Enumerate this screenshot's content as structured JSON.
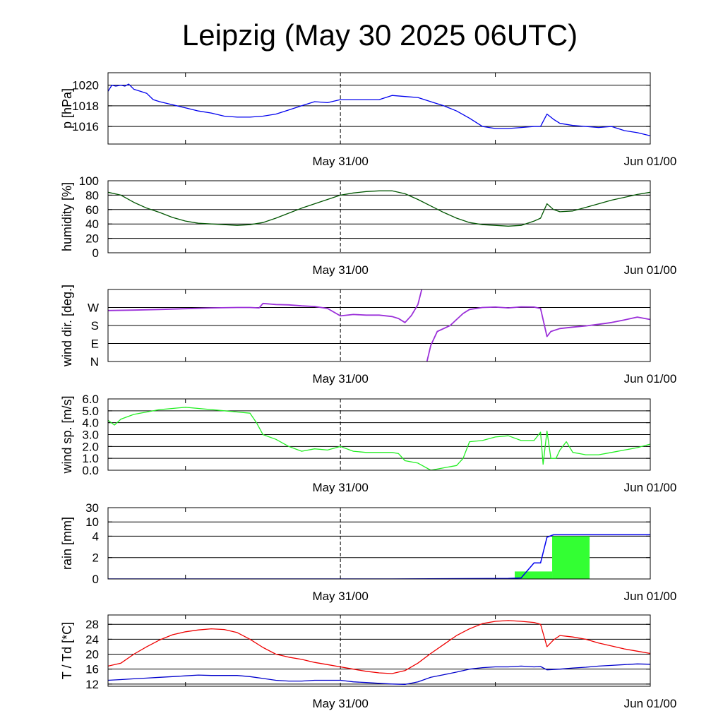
{
  "title": "Leipzig (May 30 2025 06UTC)",
  "colors": {
    "pressure": "#0000ee",
    "humidity": "#005500",
    "wind_dir": "#9b30d9",
    "wind_speed": "#22ee22",
    "rain_line": "#0000ee",
    "rain_bar": "#33ff33",
    "temperature": "#ee0000",
    "dewpoint": "#0000cc"
  },
  "chart_data": [
    {
      "type": "line",
      "id": "pressure",
      "ylabel": "p [hPa]",
      "ylim": [
        1014.3,
        1021.2
      ],
      "yticks": [
        1016,
        1018,
        1020
      ],
      "ytick_labels": [
        "1016",
        "1018",
        "1020"
      ],
      "xlim": [
        0,
        42
      ],
      "x_tick_labels": [
        {
          "x": 18,
          "label": "May 31/00"
        },
        {
          "x": 42,
          "label": "Jun 01/00"
        }
      ],
      "x": [
        0,
        0.3,
        0.6,
        1,
        1.3,
        1.6,
        2,
        2.5,
        3,
        3.5,
        4,
        5,
        6,
        7,
        8,
        9,
        10,
        11,
        12,
        13,
        14,
        15,
        16,
        17,
        18,
        19,
        20,
        21,
        22,
        23,
        24,
        25,
        26,
        27,
        28,
        29,
        30,
        31,
        32,
        33,
        33.5,
        34,
        34.1,
        34.5,
        35,
        36,
        37,
        38,
        39,
        40,
        41,
        42
      ],
      "series": [
        {
          "values": [
            1019.4,
            1020.0,
            1019.9,
            1020.0,
            1019.9,
            1020.1,
            1019.6,
            1019.4,
            1019.2,
            1018.6,
            1018.4,
            1018.1,
            1017.8,
            1017.5,
            1017.3,
            1017.0,
            1016.9,
            1016.9,
            1017.0,
            1017.2,
            1017.6,
            1018.0,
            1018.4,
            1018.3,
            1018.6,
            1018.6,
            1018.6,
            1018.6,
            1019.0,
            1018.9,
            1018.8,
            1018.4,
            1018.0,
            1017.5,
            1016.8,
            1016.0,
            1015.8,
            1015.8,
            1015.9,
            1016.0,
            1016.0,
            1017.2,
            1017.1,
            1016.7,
            1016.3,
            1016.1,
            1016.0,
            1015.9,
            1016.0,
            1015.6,
            1015.4,
            1015.1
          ]
        }
      ]
    },
    {
      "type": "line",
      "id": "humidity",
      "ylabel": "humidity [%]",
      "ylim": [
        0,
        100
      ],
      "yticks": [
        0,
        20,
        40,
        60,
        80,
        100
      ],
      "ytick_labels": [
        "0",
        "20",
        "40",
        "60",
        "80",
        "100"
      ],
      "xlim": [
        0,
        42
      ],
      "x_tick_labels": [
        {
          "x": 18,
          "label": "May 31/00"
        },
        {
          "x": 42,
          "label": "Jun 01/00"
        }
      ],
      "x": [
        0,
        1,
        2,
        3,
        4,
        5,
        6,
        7,
        8,
        9,
        10,
        11,
        12,
        13,
        14,
        15,
        16,
        17,
        18,
        19,
        20,
        21,
        22,
        23,
        24,
        25,
        26,
        27,
        28,
        29,
        30,
        31,
        32,
        33,
        33.5,
        34,
        34.5,
        35,
        36,
        37,
        38,
        39,
        40,
        41,
        42
      ],
      "series": [
        {
          "values": [
            84,
            80,
            70,
            62,
            56,
            49,
            44,
            41,
            40,
            39,
            38,
            39,
            42,
            48,
            55,
            62,
            68,
            74,
            80,
            83,
            85,
            86,
            86,
            82,
            74,
            65,
            56,
            48,
            42,
            39,
            38,
            37,
            38,
            44,
            48,
            68,
            60,
            57,
            58,
            63,
            68,
            73,
            77,
            81,
            84
          ]
        }
      ]
    },
    {
      "type": "scatter",
      "id": "wind_direction",
      "ylabel": "wind dir. [deg.]",
      "ylim": [
        0,
        360
      ],
      "yticks": [
        0,
        90,
        180,
        270
      ],
      "ytick_labels": [
        "N",
        "E",
        "S",
        "W"
      ],
      "xlim": [
        0,
        42
      ],
      "x_tick_labels": [
        {
          "x": 18,
          "label": "May 31/00"
        },
        {
          "x": 42,
          "label": "Jun 01/00"
        }
      ],
      "segments": [
        {
          "x": [
            0,
            2,
            4,
            6,
            8,
            10,
            11,
            11.7,
            12,
            13,
            14,
            15,
            16,
            17,
            18,
            19,
            20,
            21,
            22,
            22.5,
            23,
            23.5,
            24,
            24.3
          ],
          "values": [
            255,
            257,
            260,
            264,
            268,
            270,
            270,
            268,
            290,
            285,
            283,
            278,
            275,
            265,
            228,
            235,
            232,
            232,
            225,
            215,
            195,
            230,
            285,
            360
          ]
        },
        {
          "x": [
            24.7,
            25,
            25.5,
            26,
            26.5,
            27,
            27.5,
            28,
            29,
            30,
            31,
            32,
            33,
            33.5,
            34,
            34.3,
            35,
            36,
            37,
            38,
            39,
            40,
            41,
            42
          ],
          "values": [
            0,
            80,
            150,
            165,
            180,
            210,
            240,
            260,
            270,
            272,
            268,
            273,
            272,
            265,
            125,
            150,
            165,
            172,
            178,
            186,
            195,
            208,
            222,
            210
          ]
        }
      ]
    },
    {
      "type": "line",
      "id": "wind_speed",
      "ylabel": "wind sp. [m/s]",
      "ylim": [
        0,
        6
      ],
      "yticks": [
        0,
        1,
        2,
        3,
        4,
        5,
        6
      ],
      "ytick_labels": [
        "0.0",
        "1.0",
        "2.0",
        "3.0",
        "4.0",
        "5.0",
        "6.0"
      ],
      "xlim": [
        0,
        42
      ],
      "x_tick_labels": [
        {
          "x": 18,
          "label": "May 31/00"
        },
        {
          "x": 42,
          "label": "Jun 01/00"
        }
      ],
      "x": [
        0,
        0.5,
        1,
        2,
        3,
        4,
        5,
        6,
        7,
        8,
        9,
        10,
        11,
        11.5,
        12,
        13,
        14,
        15,
        16,
        17,
        18,
        19,
        20,
        21,
        22,
        22.5,
        23,
        24,
        25,
        26,
        27,
        27.5,
        28,
        29,
        30,
        31,
        32,
        33,
        33.5,
        33.7,
        34,
        34.3,
        34.7,
        35,
        35.5,
        36,
        36.5,
        37,
        38,
        39,
        40,
        41,
        42
      ],
      "series": [
        {
          "values": [
            4.2,
            3.8,
            4.3,
            4.7,
            4.9,
            5.1,
            5.2,
            5.3,
            5.2,
            5.1,
            5.0,
            4.9,
            4.8,
            4.0,
            3.0,
            2.6,
            2.0,
            1.6,
            1.8,
            1.7,
            2.0,
            1.6,
            1.5,
            1.5,
            1.5,
            1.4,
            0.8,
            0.6,
            0.0,
            0.2,
            0.4,
            1.0,
            2.4,
            2.5,
            2.8,
            2.9,
            2.5,
            2.5,
            3.2,
            0.5,
            3.3,
            1.0,
            1.0,
            1.7,
            2.4,
            1.5,
            1.4,
            1.3,
            1.3,
            1.5,
            1.7,
            1.9,
            2.2
          ]
        }
      ]
    },
    {
      "type": "bar+line",
      "id": "rain",
      "ylabel": "rain [mm]",
      "yticks": [
        0,
        2,
        4,
        10,
        30
      ],
      "ytick_labels": [
        "0",
        "2",
        "4",
        "10",
        "30"
      ],
      "xlim": [
        0,
        42
      ],
      "x_tick_labels": [
        {
          "x": 18,
          "label": "May 31/00"
        },
        {
          "x": 42,
          "label": "Jun 01/00"
        }
      ],
      "bars": [
        {
          "x0": 31.5,
          "x1": 34.4,
          "value": 0.7
        },
        {
          "x0": 34.4,
          "x1": 37.3,
          "value": 4
        }
      ],
      "accumulated": {
        "x": [
          0,
          22,
          31,
          32,
          33,
          33.5,
          34,
          34.5,
          38,
          42
        ],
        "values": [
          0,
          0,
          0.05,
          0.1,
          1.5,
          1.5,
          3.9,
          4.6,
          4.6,
          4.6
        ]
      }
    },
    {
      "type": "line",
      "id": "temperature_dewpoint",
      "ylabel": "T / Td [*C]",
      "ylim": [
        11.4,
        30.5
      ],
      "yticks": [
        12,
        16,
        20,
        24,
        28
      ],
      "ytick_labels": [
        "12",
        "16",
        "20",
        "24",
        "28"
      ],
      "xlim": [
        0,
        42
      ],
      "x_tick_labels": [
        {
          "x": 18,
          "label": "May 31/00"
        },
        {
          "x": 42,
          "label": "Jun 01/00"
        }
      ],
      "x": [
        0,
        1,
        2,
        3,
        4,
        5,
        6,
        7,
        8,
        9,
        10,
        11,
        12,
        13,
        14,
        15,
        16,
        17,
        18,
        19,
        20,
        21,
        22,
        23,
        24,
        25,
        26,
        27,
        28,
        29,
        30,
        31,
        32,
        33,
        33.5,
        34,
        34.5,
        35,
        36,
        37,
        38,
        39,
        40,
        41,
        42
      ],
      "series": [
        {
          "name": "T",
          "values": [
            16.8,
            17.6,
            20.0,
            22.0,
            23.8,
            25.2,
            26.0,
            26.5,
            26.8,
            26.6,
            25.8,
            24.0,
            21.8,
            20.0,
            19.2,
            18.6,
            17.8,
            17.2,
            16.6,
            16.0,
            15.4,
            15.0,
            14.8,
            15.6,
            17.6,
            20.2,
            22.6,
            25.0,
            26.8,
            28.2,
            28.8,
            29.0,
            28.8,
            28.5,
            28.0,
            22.0,
            23.8,
            25.0,
            24.6,
            24.0,
            23.0,
            22.2,
            21.4,
            20.8,
            20.2
          ]
        },
        {
          "name": "Td",
          "values": [
            13.0,
            13.2,
            13.4,
            13.6,
            13.8,
            14.0,
            14.2,
            14.4,
            14.3,
            14.3,
            14.3,
            14.0,
            13.5,
            13.0,
            12.8,
            12.8,
            13.0,
            13.0,
            13.0,
            12.6,
            12.4,
            12.2,
            12.0,
            11.9,
            12.6,
            13.8,
            14.5,
            15.2,
            16.0,
            16.4,
            16.6,
            16.6,
            16.8,
            16.6,
            16.7,
            15.8,
            15.9,
            16.0,
            16.3,
            16.5,
            16.8,
            17.0,
            17.2,
            17.4,
            17.3
          ]
        }
      ]
    }
  ]
}
